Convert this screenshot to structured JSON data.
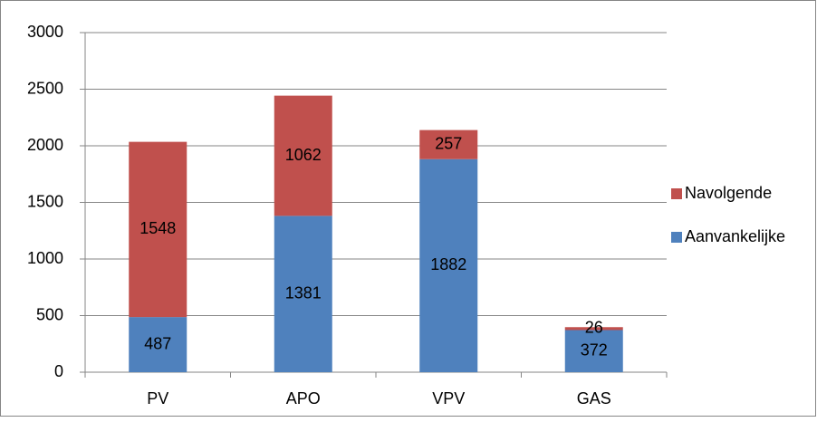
{
  "chart_data": {
    "type": "stacked_bar",
    "categories": [
      "PV",
      "APO",
      "VPV",
      "GAS"
    ],
    "series": [
      {
        "name": "Aanvankelijke",
        "color": "#4f81bd",
        "values": [
          487,
          1381,
          1882,
          372
        ]
      },
      {
        "name": "Navolgende",
        "color": "#c0504d",
        "values": [
          1548,
          1062,
          257,
          26
        ]
      }
    ],
    "ylim": [
      0,
      3000
    ],
    "yticks": [
      0,
      500,
      1000,
      1500,
      2000,
      2500,
      3000
    ],
    "grid": true,
    "legend": "right"
  }
}
